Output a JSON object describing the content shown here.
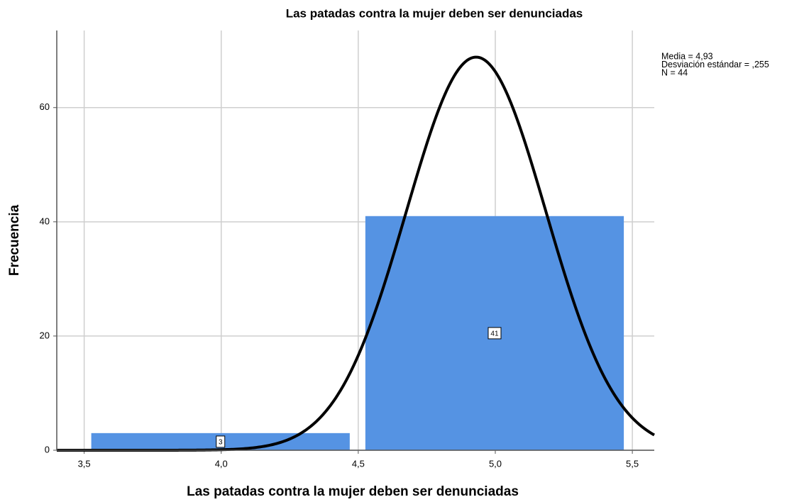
{
  "chart_data": {
    "type": "histogram",
    "title": "Las patadas contra la mujer deben ser denunciadas",
    "x_label": "Las patadas contra la mujer deben ser denunciadas",
    "y_label": "Frecuencia",
    "bins": [
      3.5,
      4.5,
      5.5
    ],
    "values": [
      3,
      41
    ],
    "color": "#5593e3",
    "xlim": [
      3.4,
      5.58
    ],
    "ylim": [
      0,
      73.5
    ],
    "xticks": [
      {
        "value": 3.5,
        "label": "3,5"
      },
      {
        "value": 4.0,
        "label": "4,0"
      },
      {
        "value": 4.5,
        "label": "4,5"
      },
      {
        "value": 5.0,
        "label": "5,0"
      },
      {
        "value": 5.5,
        "label": "5,5"
      }
    ],
    "yticks": [
      0,
      20,
      40,
      60
    ],
    "grid": true,
    "normal_curve": {
      "mean": 4.93,
      "sd": 0.255,
      "n": 44,
      "color": "#000000"
    },
    "annotations": [
      "Media = 4,93",
      "Desviación estándar = ,255",
      "N = 44"
    ]
  }
}
